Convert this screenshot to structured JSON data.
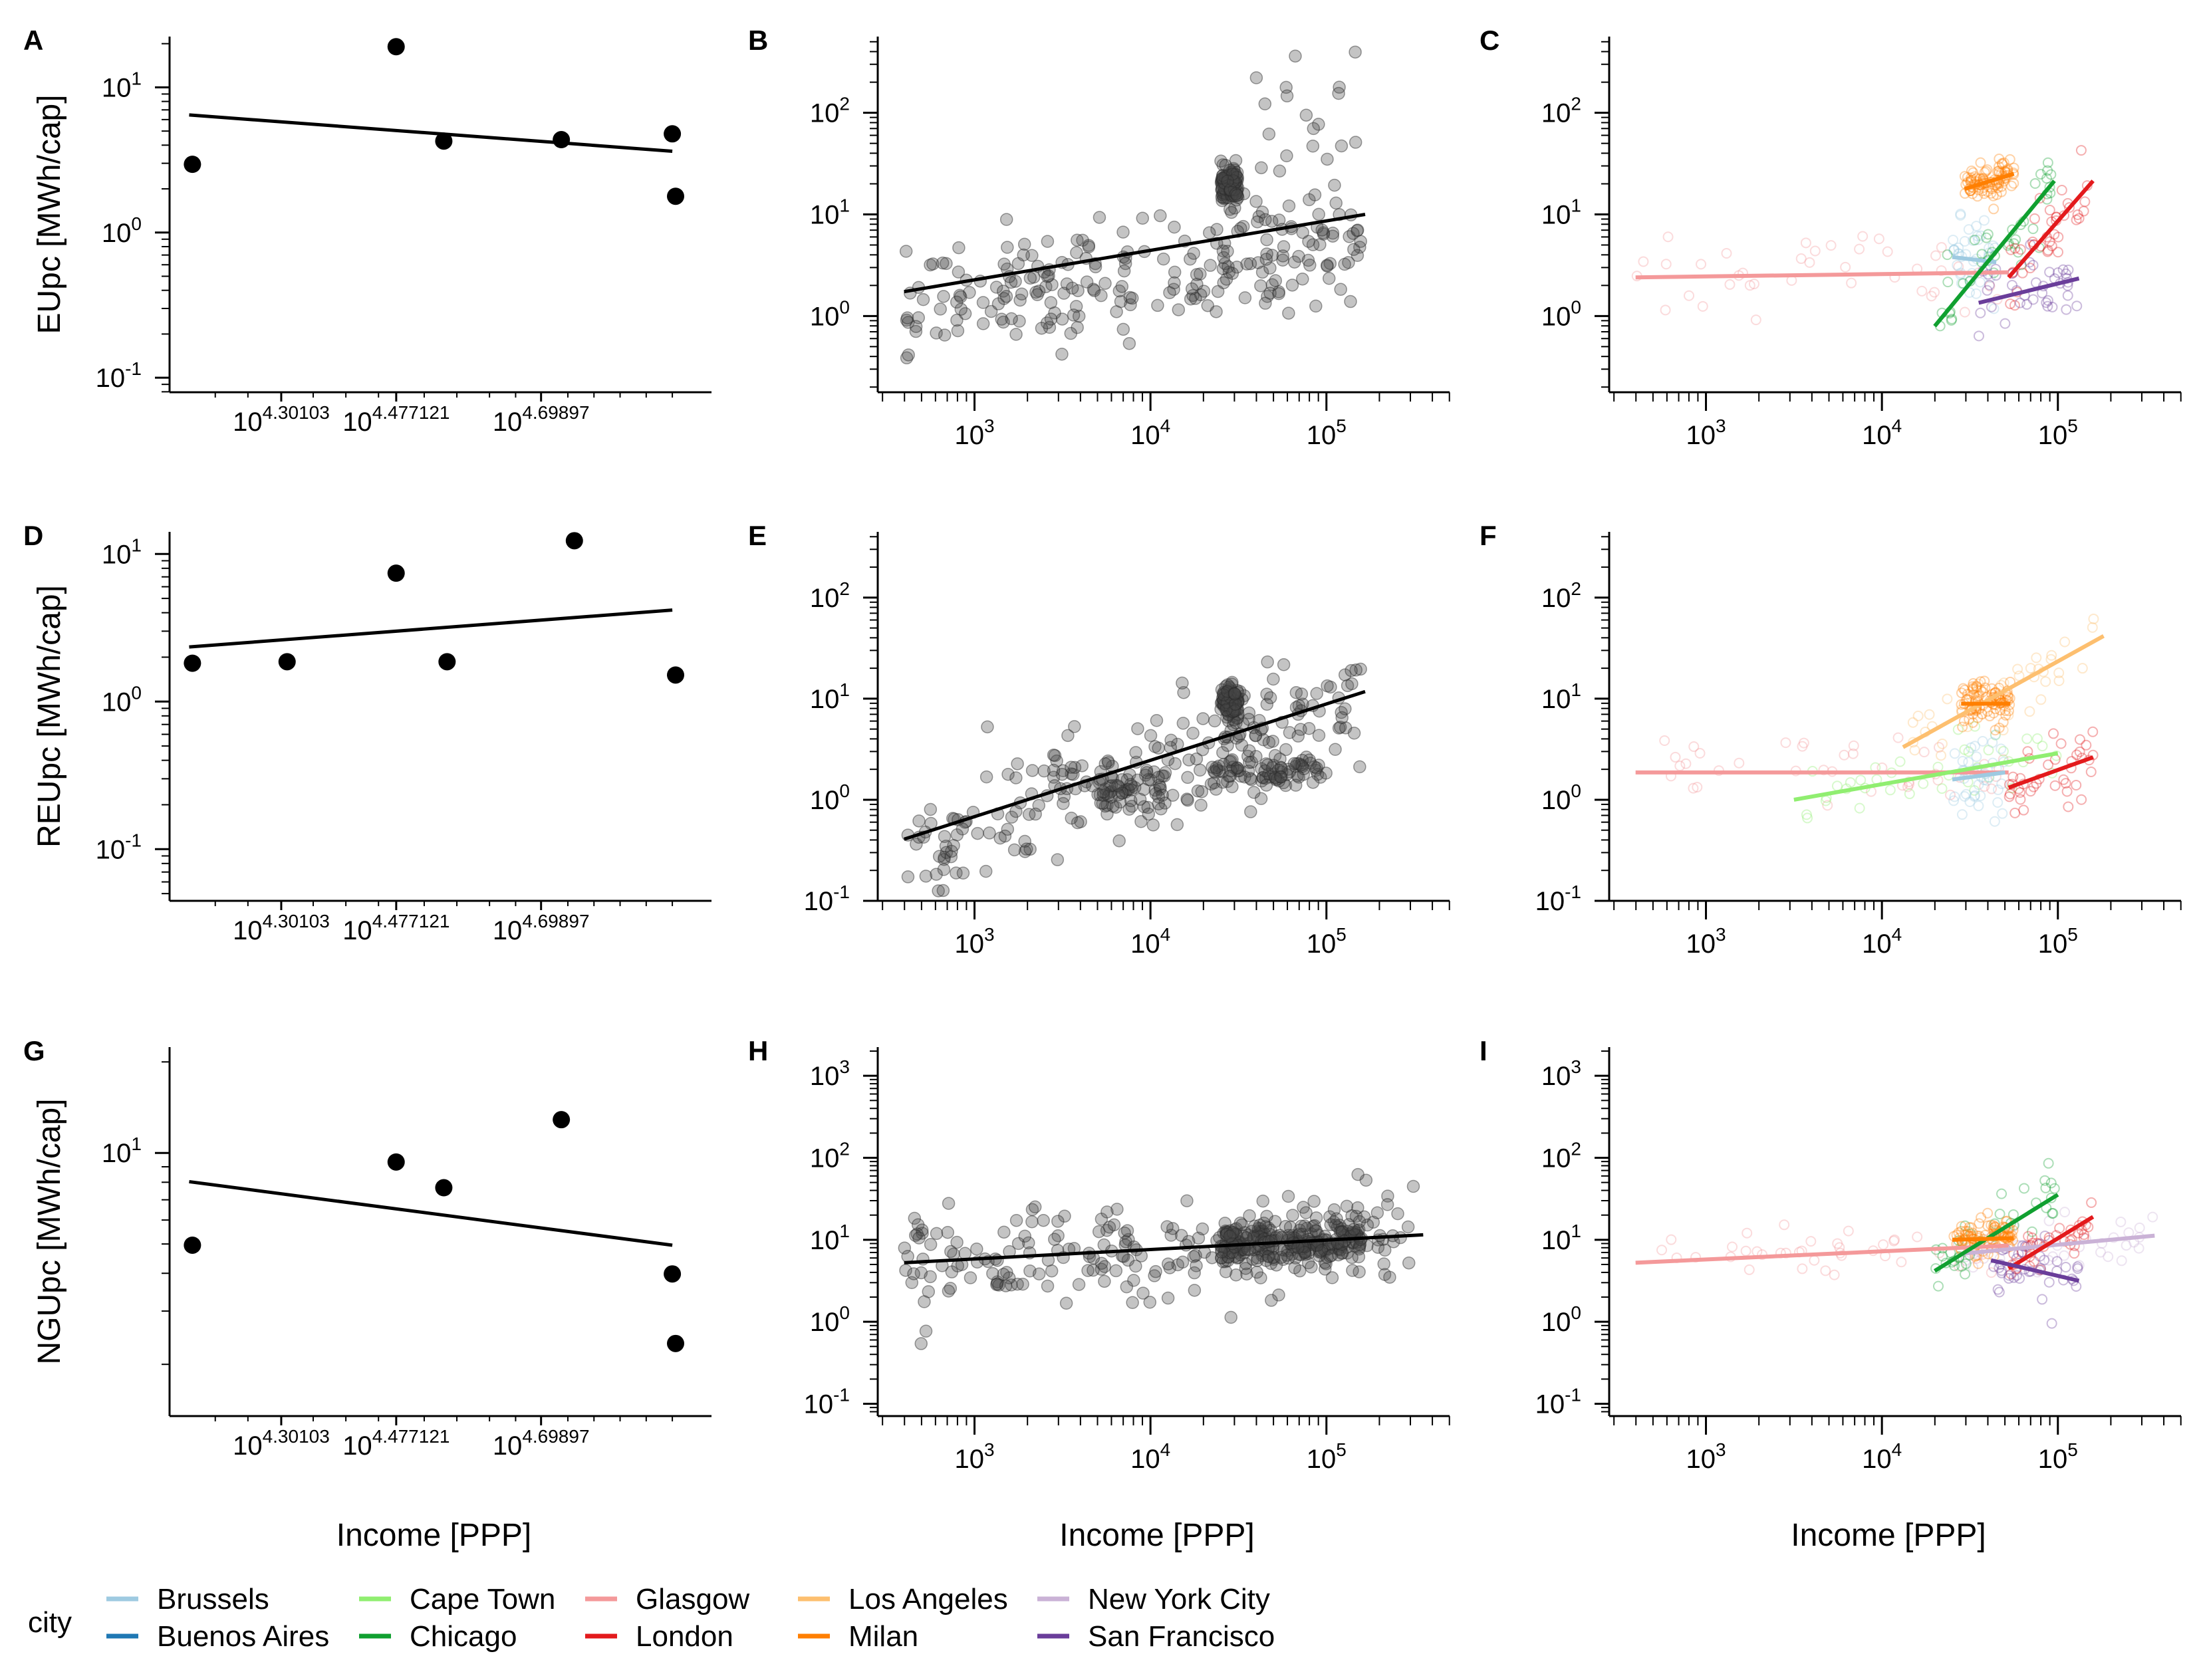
{
  "legend": {
    "title": "city",
    "entries": [
      {
        "name": "Brussels",
        "color": "#9ecae1"
      },
      {
        "name": "Buenos Aires",
        "color": "#1f78b4"
      },
      {
        "name": "Cape Town",
        "color": "#90ee70"
      },
      {
        "name": "Chicago",
        "color": "#10a030"
      },
      {
        "name": "Glasgow",
        "color": "#f4999a"
      },
      {
        "name": "London",
        "color": "#e31a1c"
      },
      {
        "name": "Los Angeles",
        "color": "#fdbf6f"
      },
      {
        "name": "Milan",
        "color": "#ff7f00"
      },
      {
        "name": "New York City",
        "color": "#cab2d6"
      },
      {
        "name": "San Francisco",
        "color": "#6a3d9a"
      }
    ]
  },
  "chart_data": [
    {
      "panel": "A",
      "type": "scatter",
      "ylabel": "EUpc [MWh/cap]",
      "xlabel": "",
      "x_scale": "log10",
      "y_scale": "log10",
      "xlim_log": [
        4.13,
        4.96
      ],
      "ylim_log": [
        -1.1,
        1.35
      ],
      "x_ticks": [
        {
          "v": 4.30103,
          "base": "10",
          "exp": "4.30103"
        },
        {
          "v": 4.477121,
          "base": "10",
          "exp": "4.477121"
        },
        {
          "v": 4.69897,
          "base": "10",
          "exp": "4.69897"
        }
      ],
      "y_ticks": [
        {
          "v": 1,
          "base": "10",
          "exp": "1"
        },
        {
          "v": 0,
          "base": "10",
          "exp": "0"
        },
        {
          "v": -1,
          "base": "10",
          "exp": "-1"
        }
      ],
      "points_log": [
        [
          4.165,
          0.47
        ],
        [
          4.477,
          1.28
        ],
        [
          4.55,
          0.63
        ],
        [
          4.73,
          0.64
        ],
        [
          4.9,
          0.68
        ],
        [
          4.905,
          0.25
        ]
      ],
      "fit_log": [
        [
          4.16,
          0.81
        ],
        [
          4.9,
          0.56
        ]
      ]
    },
    {
      "panel": "B",
      "type": "scatter",
      "ylabel": "",
      "xlabel": "",
      "x_scale": "log10",
      "y_scale": "log10",
      "xlim_log": [
        2.45,
        5.7
      ],
      "ylim_log": [
        -0.75,
        2.75
      ],
      "x_ticks": [
        {
          "v": 3,
          "base": "10",
          "exp": "3"
        },
        {
          "v": 4,
          "base": "10",
          "exp": "4"
        },
        {
          "v": 5,
          "base": "10",
          "exp": "5"
        }
      ],
      "y_ticks": [
        {
          "v": 2,
          "base": "10",
          "exp": "2"
        },
        {
          "v": 1,
          "base": "10",
          "exp": "1"
        },
        {
          "v": 0,
          "base": "10",
          "exp": "0"
        }
      ],
      "fit_log": [
        [
          2.6,
          0.24
        ],
        [
          5.22,
          1.0
        ]
      ]
    },
    {
      "panel": "C",
      "type": "line",
      "ylabel": "",
      "xlabel": "",
      "x_scale": "log10",
      "y_scale": "log10",
      "xlim_log": [
        2.45,
        5.7
      ],
      "ylim_log": [
        -0.75,
        2.75
      ],
      "x_ticks": [
        {
          "v": 3,
          "base": "10",
          "exp": "3"
        },
        {
          "v": 4,
          "base": "10",
          "exp": "4"
        },
        {
          "v": 5,
          "base": "10",
          "exp": "5"
        }
      ],
      "y_ticks": [
        {
          "v": 2,
          "base": "10",
          "exp": "2"
        },
        {
          "v": 1,
          "base": "10",
          "exp": "1"
        },
        {
          "v": 0,
          "base": "10",
          "exp": "0"
        }
      ],
      "series": [
        {
          "city": "Glasgow",
          "fit_log": [
            [
              2.6,
              0.38
            ],
            [
              4.72,
              0.43
            ]
          ]
        },
        {
          "city": "Brussels",
          "fit_log": [
            [
              4.4,
              0.58
            ],
            [
              4.65,
              0.53
            ]
          ]
        },
        {
          "city": "Milan",
          "fit_log": [
            [
              4.47,
              1.25
            ],
            [
              4.75,
              1.4
            ]
          ]
        },
        {
          "city": "Chicago",
          "fit_log": [
            [
              4.3,
              -0.1
            ],
            [
              4.98,
              1.33
            ]
          ]
        },
        {
          "city": "London",
          "fit_log": [
            [
              4.72,
              0.38
            ],
            [
              5.2,
              1.33
            ]
          ]
        },
        {
          "city": "San Francisco",
          "fit_log": [
            [
              4.55,
              0.13
            ],
            [
              5.12,
              0.37
            ]
          ]
        }
      ]
    },
    {
      "panel": "D",
      "type": "scatter",
      "ylabel": "REUpc [MWh/cap]",
      "xlabel": "",
      "x_scale": "log10",
      "y_scale": "log10",
      "xlim_log": [
        4.13,
        4.96
      ],
      "ylim_log": [
        -1.35,
        1.15
      ],
      "x_ticks": [
        {
          "v": 4.30103,
          "base": "10",
          "exp": "4.30103"
        },
        {
          "v": 4.477121,
          "base": "10",
          "exp": "4.477121"
        },
        {
          "v": 4.69897,
          "base": "10",
          "exp": "4.69897"
        }
      ],
      "y_ticks": [
        {
          "v": 1,
          "base": "10",
          "exp": "1"
        },
        {
          "v": 0,
          "base": "10",
          "exp": "0"
        },
        {
          "v": -1,
          "base": "10",
          "exp": "-1"
        }
      ],
      "points_log": [
        [
          4.165,
          0.26
        ],
        [
          4.31,
          0.27
        ],
        [
          4.477,
          0.87
        ],
        [
          4.555,
          0.27
        ],
        [
          4.75,
          1.09
        ],
        [
          4.905,
          0.18
        ]
      ],
      "fit_log": [
        [
          4.16,
          0.37
        ],
        [
          4.9,
          0.62
        ]
      ]
    },
    {
      "panel": "E",
      "type": "scatter",
      "ylabel": "",
      "xlabel": "",
      "x_scale": "log10",
      "y_scale": "log10",
      "xlim_log": [
        2.45,
        5.7
      ],
      "ylim_log": [
        -1.0,
        2.65
      ],
      "x_ticks": [
        {
          "v": 3,
          "base": "10",
          "exp": "3"
        },
        {
          "v": 4,
          "base": "10",
          "exp": "4"
        },
        {
          "v": 5,
          "base": "10",
          "exp": "5"
        }
      ],
      "y_ticks": [
        {
          "v": 2,
          "base": "10",
          "exp": "2"
        },
        {
          "v": 1,
          "base": "10",
          "exp": "1"
        },
        {
          "v": 0,
          "base": "10",
          "exp": "0"
        },
        {
          "v": -1,
          "base": "10",
          "exp": "-1"
        }
      ],
      "fit_log": [
        [
          2.6,
          -0.39
        ],
        [
          5.22,
          1.07
        ]
      ]
    },
    {
      "panel": "F",
      "type": "line",
      "ylabel": "",
      "xlabel": "",
      "x_scale": "log10",
      "y_scale": "log10",
      "xlim_log": [
        2.45,
        5.7
      ],
      "ylim_log": [
        -1.0,
        2.65
      ],
      "x_ticks": [
        {
          "v": 3,
          "base": "10",
          "exp": "3"
        },
        {
          "v": 4,
          "base": "10",
          "exp": "4"
        },
        {
          "v": 5,
          "base": "10",
          "exp": "5"
        }
      ],
      "y_ticks": [
        {
          "v": 2,
          "base": "10",
          "exp": "2"
        },
        {
          "v": 1,
          "base": "10",
          "exp": "1"
        },
        {
          "v": 0,
          "base": "10",
          "exp": "0"
        },
        {
          "v": -1,
          "base": "10",
          "exp": "-1"
        }
      ],
      "series": [
        {
          "city": "Glasgow",
          "fit_log": [
            [
              2.6,
              0.27
            ],
            [
              4.72,
              0.27
            ]
          ]
        },
        {
          "city": "Cape Town",
          "fit_log": [
            [
              3.5,
              0.0
            ],
            [
              5.0,
              0.46
            ]
          ]
        },
        {
          "city": "Brussels",
          "fit_log": [
            [
              4.4,
              0.2
            ],
            [
              4.7,
              0.27
            ]
          ]
        },
        {
          "city": "Los Angeles",
          "fit_log": [
            [
              4.12,
              0.52
            ],
            [
              5.26,
              1.62
            ]
          ]
        },
        {
          "city": "Milan",
          "fit_log": [
            [
              4.45,
              0.95
            ],
            [
              4.73,
              0.95
            ]
          ]
        },
        {
          "city": "London",
          "fit_log": [
            [
              4.72,
              0.12
            ],
            [
              5.2,
              0.42
            ]
          ]
        }
      ]
    },
    {
      "panel": "G",
      "type": "scatter",
      "ylabel": "NGUpc [MWh/cap]",
      "xlabel": "Income [PPP]",
      "x_scale": "log10",
      "y_scale": "log10",
      "xlim_log": [
        4.13,
        4.96
      ],
      "ylim_log": [
        0.13,
        1.35
      ],
      "x_ticks": [
        {
          "v": 4.30103,
          "base": "10",
          "exp": "4.30103"
        },
        {
          "v": 4.477121,
          "base": "10",
          "exp": "4.477121"
        },
        {
          "v": 4.69897,
          "base": "10",
          "exp": "4.69897"
        }
      ],
      "y_ticks": [
        {
          "v": 1,
          "base": "10",
          "exp": "1"
        }
      ],
      "points_log": [
        [
          4.165,
          0.695
        ],
        [
          4.477,
          0.97
        ],
        [
          4.55,
          0.885
        ],
        [
          4.73,
          1.11
        ],
        [
          4.9,
          0.6
        ],
        [
          4.905,
          0.37
        ]
      ],
      "fit_log": [
        [
          4.16,
          0.905
        ],
        [
          4.9,
          0.695
        ]
      ]
    },
    {
      "panel": "H",
      "type": "scatter",
      "ylabel": "",
      "xlabel": "Income [PPP]",
      "x_scale": "log10",
      "y_scale": "log10",
      "xlim_log": [
        2.45,
        5.7
      ],
      "ylim_log": [
        -1.15,
        3.35
      ],
      "x_ticks": [
        {
          "v": 3,
          "base": "10",
          "exp": "3"
        },
        {
          "v": 4,
          "base": "10",
          "exp": "4"
        },
        {
          "v": 5,
          "base": "10",
          "exp": "5"
        }
      ],
      "y_ticks": [
        {
          "v": 3,
          "base": "10",
          "exp": "3"
        },
        {
          "v": 2,
          "base": "10",
          "exp": "2"
        },
        {
          "v": 1,
          "base": "10",
          "exp": "1"
        },
        {
          "v": 0,
          "base": "10",
          "exp": "0"
        },
        {
          "v": -1,
          "base": "10",
          "exp": "-1"
        }
      ],
      "fit_log": [
        [
          2.6,
          0.72
        ],
        [
          5.55,
          1.06
        ]
      ]
    },
    {
      "panel": "I",
      "type": "line",
      "ylabel": "",
      "xlabel": "Income [PPP]",
      "x_scale": "log10",
      "y_scale": "log10",
      "xlim_log": [
        2.45,
        5.7
      ],
      "ylim_log": [
        -1.15,
        3.35
      ],
      "x_ticks": [
        {
          "v": 3,
          "base": "10",
          "exp": "3"
        },
        {
          "v": 4,
          "base": "10",
          "exp": "4"
        },
        {
          "v": 5,
          "base": "10",
          "exp": "5"
        }
      ],
      "y_ticks": [
        {
          "v": 3,
          "base": "10",
          "exp": "3"
        },
        {
          "v": 2,
          "base": "10",
          "exp": "2"
        },
        {
          "v": 1,
          "base": "10",
          "exp": "1"
        },
        {
          "v": 0,
          "base": "10",
          "exp": "0"
        },
        {
          "v": -1,
          "base": "10",
          "exp": "-1"
        }
      ],
      "series": [
        {
          "city": "Glasgow",
          "fit_log": [
            [
              2.6,
              0.72
            ],
            [
              4.72,
              0.93
            ]
          ]
        },
        {
          "city": "New York City",
          "fit_log": [
            [
              4.45,
              0.83
            ],
            [
              5.55,
              1.05
            ]
          ]
        },
        {
          "city": "Chicago",
          "fit_log": [
            [
              4.3,
              0.62
            ],
            [
              5.0,
              1.55
            ]
          ]
        },
        {
          "city": "Milan",
          "fit_log": [
            [
              4.4,
              1.0
            ],
            [
              4.75,
              1.02
            ]
          ]
        },
        {
          "city": "London",
          "fit_log": [
            [
              4.72,
              0.65
            ],
            [
              5.2,
              1.28
            ]
          ]
        },
        {
          "city": "San Francisco",
          "fit_log": [
            [
              4.62,
              0.75
            ],
            [
              5.12,
              0.5
            ]
          ]
        }
      ]
    }
  ]
}
